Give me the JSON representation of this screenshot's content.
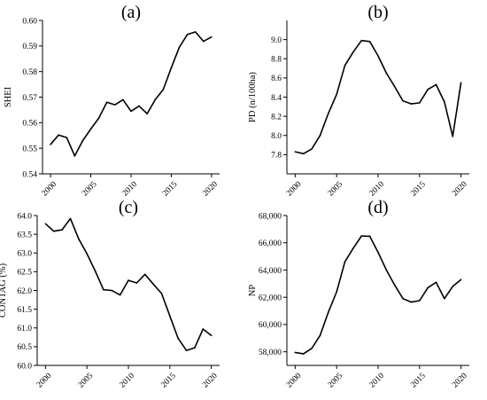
{
  "chart_data": [
    {
      "type": "line",
      "title": "(a)",
      "xlabel": "",
      "ylabel": "SHEI",
      "xlim": [
        1999,
        2021
      ],
      "ylim": [
        0.54,
        0.6
      ],
      "xticks": [
        2000,
        2005,
        2010,
        2015,
        2020
      ],
      "xtick_labels": [
        "2000",
        "2005",
        "2010",
        "2015",
        "2020"
      ],
      "yticks": [
        0.54,
        0.55,
        0.56,
        0.57,
        0.58,
        0.59,
        0.6
      ],
      "ytick_labels": [
        "0.54",
        "0.55",
        "0.56",
        "0.57",
        "0.58",
        "0.59",
        "0.60"
      ],
      "grid": false,
      "x": [
        2000,
        2001,
        2002,
        2003,
        2004,
        2005,
        2006,
        2007,
        2008,
        2009,
        2010,
        2011,
        2012,
        2013,
        2014,
        2015,
        2016,
        2017,
        2018,
        2019,
        2020
      ],
      "series": [
        {
          "values": [
            0.5515,
            0.5552,
            0.5542,
            0.547,
            0.553,
            0.5575,
            0.5618,
            0.568,
            0.567,
            0.569,
            0.5645,
            0.5665,
            0.5635,
            0.569,
            0.573,
            0.5815,
            0.5895,
            0.5945,
            0.5955,
            0.5918,
            0.5935
          ]
        }
      ]
    },
    {
      "type": "line",
      "title": "(b)",
      "xlabel": "",
      "ylabel": "PD (n/100ha)",
      "xlim": [
        1999,
        2021
      ],
      "ylim": [
        7.6,
        9.2
      ],
      "xticks": [
        2000,
        2005,
        2010,
        2015,
        2020
      ],
      "xtick_labels": [
        "2000",
        "2005",
        "2010",
        "2015",
        "2020"
      ],
      "yticks": [
        7.8,
        8.0,
        8.2,
        8.4,
        8.6,
        8.8,
        9.0
      ],
      "ytick_labels": [
        "7.8",
        "8.0",
        "8.2",
        "8.4",
        "8.6",
        "8.8",
        "9.0"
      ],
      "grid": false,
      "x": [
        2000,
        2001,
        2002,
        2003,
        2004,
        2005,
        2006,
        2007,
        2008,
        2009,
        2010,
        2011,
        2012,
        2013,
        2014,
        2015,
        2016,
        2017,
        2018,
        2019,
        2020
      ],
      "series": [
        {
          "values": [
            7.83,
            7.81,
            7.86,
            8.0,
            8.23,
            8.43,
            8.73,
            8.87,
            8.99,
            8.98,
            8.83,
            8.65,
            8.51,
            8.36,
            8.33,
            8.34,
            8.48,
            8.53,
            8.35,
            7.99,
            8.55
          ]
        }
      ]
    },
    {
      "type": "line",
      "title": "(c)",
      "xlabel": "",
      "ylabel": "CONTAG (%)",
      "xlim": [
        1999,
        2021
      ],
      "ylim": [
        60.0,
        64.0
      ],
      "xticks": [
        2000,
        2005,
        2010,
        2015,
        2020
      ],
      "xtick_labels": [
        "2000",
        "2005",
        "2010",
        "2015",
        "2020"
      ],
      "yticks": [
        60.0,
        60.5,
        61.0,
        61.5,
        62.0,
        62.5,
        63.0,
        63.5,
        64.0
      ],
      "ytick_labels": [
        "60.0",
        "60.5",
        "61.0",
        "61.5",
        "62.0",
        "62.5",
        "63.0",
        "63.5",
        "64.0"
      ],
      "grid": false,
      "x": [
        2000,
        2001,
        2002,
        2003,
        2004,
        2005,
        2006,
        2007,
        2008,
        2009,
        2010,
        2011,
        2012,
        2013,
        2014,
        2015,
        2016,
        2017,
        2018,
        2019,
        2020
      ],
      "series": [
        {
          "values": [
            63.78,
            63.58,
            63.62,
            63.92,
            63.38,
            62.98,
            62.52,
            62.02,
            62.0,
            61.88,
            62.27,
            62.2,
            62.43,
            62.17,
            61.92,
            61.32,
            60.72,
            60.4,
            60.47,
            60.97,
            60.8
          ]
        }
      ]
    },
    {
      "type": "line",
      "title": "(d)",
      "xlabel": "",
      "ylabel": "NP",
      "xlim": [
        1999,
        2021
      ],
      "ylim": [
        57000,
        68000
      ],
      "xticks": [
        2000,
        2005,
        2010,
        2015,
        2020
      ],
      "xtick_labels": [
        "2000",
        "2005",
        "2010",
        "2015",
        "2020"
      ],
      "yticks": [
        58000,
        60000,
        62000,
        64000,
        66000,
        68000
      ],
      "ytick_labels": [
        "58,000",
        "60,000",
        "62,000",
        "64,000",
        "66,000",
        "68,000"
      ],
      "grid": false,
      "x": [
        2000,
        2001,
        2002,
        2003,
        2004,
        2005,
        2006,
        2007,
        2008,
        2009,
        2010,
        2011,
        2012,
        2013,
        2014,
        2015,
        2016,
        2017,
        2018,
        2019,
        2020
      ],
      "series": [
        {
          "values": [
            57950,
            57850,
            58250,
            59200,
            60900,
            62400,
            64600,
            65600,
            66500,
            66480,
            65300,
            64000,
            62900,
            61900,
            61650,
            61750,
            62700,
            63100,
            61900,
            62800,
            63300
          ]
        }
      ]
    }
  ]
}
